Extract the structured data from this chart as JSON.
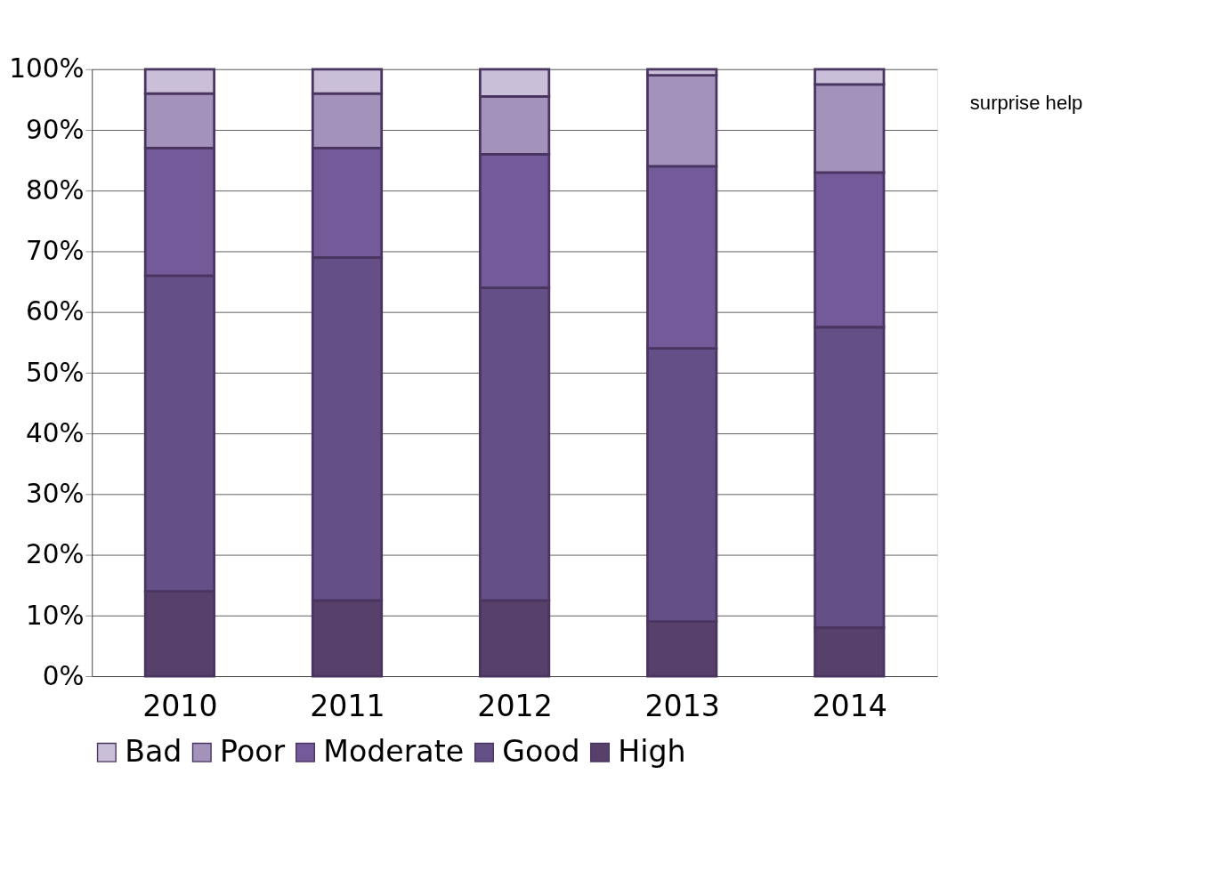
{
  "chart_data": {
    "type": "bar",
    "stacked": true,
    "categories": [
      "2010",
      "2011",
      "2012",
      "2013",
      "2014"
    ],
    "series": [
      {
        "name": "High",
        "color": "#574069",
        "values": [
          14,
          12.5,
          12.5,
          9,
          8
        ]
      },
      {
        "name": "Good",
        "color": "#654f87",
        "values": [
          52,
          56.5,
          51.5,
          45,
          49.5
        ]
      },
      {
        "name": "Moderate",
        "color": "#735a99",
        "values": [
          21,
          18,
          22,
          30,
          25.5
        ]
      },
      {
        "name": "Poor",
        "color": "#a393bb",
        "values": [
          9,
          9,
          9.5,
          15,
          14.5
        ]
      },
      {
        "name": "Bad",
        "color": "#c9bfd9",
        "values": [
          4,
          4,
          4.5,
          1,
          2.5
        ]
      }
    ],
    "ylim": [
      0,
      100
    ],
    "yticks": [
      {
        "value": 0,
        "label": "0%"
      },
      {
        "value": 10,
        "label": "10%"
      },
      {
        "value": 20,
        "label": "20%"
      },
      {
        "value": 30,
        "label": "30%"
      },
      {
        "value": 40,
        "label": "40%"
      },
      {
        "value": 50,
        "label": "50%"
      },
      {
        "value": 60,
        "label": "60%"
      },
      {
        "value": 70,
        "label": "70%"
      },
      {
        "value": 80,
        "label": "80%"
      },
      {
        "value": 90,
        "label": "90%"
      },
      {
        "value": 100,
        "label": "100%"
      }
    ],
    "grid": "y",
    "legend": "bottom",
    "annotations": [
      "surprise help"
    ]
  }
}
